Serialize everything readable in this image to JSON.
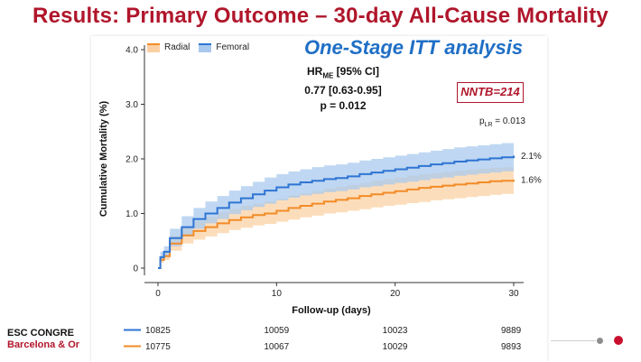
{
  "slide": {
    "title": "Results: Primary Outcome – 30-day All-Cause Mortality",
    "analysis_label": "One-Stage ITT analysis",
    "hr_label_main": "HR",
    "hr_label_sub": "ME",
    "hr_label_rest": " [95% CI]",
    "hr_value": "0.77 [0.63-0.95]",
    "p_value": "p = 0.012",
    "nntb": "NNTB=214",
    "plr_main": "p",
    "plr_sub": "LR",
    "plr_value": " = 0.013",
    "footer_line1": "ESC CONGRE",
    "footer_line2": "Barcelona & Or"
  },
  "colors": {
    "title": "#b0162b",
    "femoral": "#2f75d4",
    "femoral_band": "#a9c9ee",
    "radial": "#f28c28",
    "radial_band": "#fbd1a4",
    "analysis_label": "#1f6fc5"
  },
  "chart_data": {
    "type": "line",
    "xlabel": "Follow-up (days)",
    "ylabel": "Cumulative Mortality (%)",
    "xlim": [
      0,
      30
    ],
    "ylim": [
      0,
      4.0
    ],
    "x_ticks": [
      0,
      10,
      20,
      30
    ],
    "y_ticks": [
      0,
      1.0,
      2.0,
      3.0,
      4.0
    ],
    "y_tick_labels": [
      "0",
      "1.0",
      "2.0",
      "3.0",
      "4.0"
    ],
    "legend_position": "top-left",
    "series": [
      {
        "name": "Radial",
        "color_key": "radial",
        "end_label": "1.6%",
        "x": [
          0,
          0.2,
          0.5,
          1,
          2,
          3,
          4,
          5,
          6,
          7,
          8,
          9,
          10,
          11,
          12,
          13,
          14,
          15,
          16,
          17,
          18,
          19,
          20,
          21,
          22,
          23,
          24,
          25,
          26,
          27,
          28,
          29,
          30
        ],
        "y": [
          0,
          0.15,
          0.22,
          0.45,
          0.6,
          0.68,
          0.75,
          0.82,
          0.88,
          0.93,
          0.97,
          1.0,
          1.05,
          1.1,
          1.14,
          1.18,
          1.22,
          1.25,
          1.28,
          1.32,
          1.35,
          1.38,
          1.41,
          1.44,
          1.47,
          1.49,
          1.51,
          1.53,
          1.55,
          1.57,
          1.59,
          1.6,
          1.62
        ],
        "ci_lower": [
          0,
          0.1,
          0.15,
          0.32,
          0.45,
          0.52,
          0.58,
          0.64,
          0.7,
          0.74,
          0.78,
          0.81,
          0.85,
          0.89,
          0.93,
          0.96,
          1.0,
          1.02,
          1.05,
          1.08,
          1.11,
          1.14,
          1.16,
          1.19,
          1.21,
          1.24,
          1.26,
          1.28,
          1.3,
          1.32,
          1.34,
          1.36,
          1.38
        ],
        "ci_upper": [
          0,
          0.22,
          0.3,
          0.6,
          0.76,
          0.86,
          0.94,
          1.02,
          1.08,
          1.14,
          1.18,
          1.22,
          1.27,
          1.33,
          1.37,
          1.41,
          1.46,
          1.49,
          1.52,
          1.56,
          1.6,
          1.63,
          1.66,
          1.69,
          1.72,
          1.74,
          1.76,
          1.78,
          1.8,
          1.82,
          1.84,
          1.85,
          1.87
        ],
        "at_risk": [
          10775,
          10067,
          10029,
          9893
        ]
      },
      {
        "name": "Femoral",
        "color_key": "femoral",
        "end_label": "2.1%",
        "x": [
          0,
          0.2,
          0.5,
          1,
          2,
          3,
          4,
          5,
          6,
          7,
          8,
          9,
          10,
          11,
          12,
          13,
          14,
          15,
          16,
          17,
          18,
          19,
          20,
          21,
          22,
          23,
          24,
          25,
          26,
          27,
          28,
          29,
          30
        ],
        "y": [
          0,
          0.2,
          0.3,
          0.55,
          0.75,
          0.9,
          1.0,
          1.1,
          1.2,
          1.28,
          1.35,
          1.42,
          1.48,
          1.53,
          1.57,
          1.6,
          1.63,
          1.65,
          1.68,
          1.72,
          1.75,
          1.78,
          1.81,
          1.84,
          1.87,
          1.9,
          1.92,
          1.95,
          1.97,
          1.99,
          2.01,
          2.03,
          2.06
        ],
        "ci_lower": [
          0,
          0.13,
          0.2,
          0.4,
          0.58,
          0.72,
          0.82,
          0.9,
          0.99,
          1.06,
          1.12,
          1.18,
          1.24,
          1.29,
          1.33,
          1.36,
          1.39,
          1.41,
          1.44,
          1.48,
          1.5,
          1.53,
          1.56,
          1.58,
          1.61,
          1.64,
          1.66,
          1.69,
          1.71,
          1.73,
          1.75,
          1.77,
          1.8
        ],
        "ci_upper": [
          0,
          0.3,
          0.4,
          0.72,
          0.95,
          1.1,
          1.22,
          1.32,
          1.42,
          1.5,
          1.58,
          1.66,
          1.72,
          1.77,
          1.81,
          1.85,
          1.88,
          1.9,
          1.93,
          1.97,
          2.0,
          2.03,
          2.06,
          2.09,
          2.12,
          2.15,
          2.18,
          2.21,
          2.23,
          2.25,
          2.27,
          2.29,
          2.32
        ],
        "at_risk": [
          10825,
          10059,
          10023,
          9889
        ]
      }
    ]
  }
}
